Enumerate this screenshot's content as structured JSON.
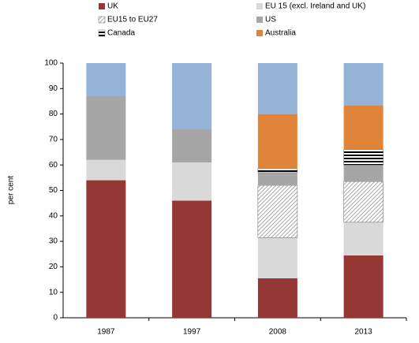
{
  "chart_data": {
    "type": "stacked-bar",
    "y_label": "per cent",
    "categories": [
      "1987",
      "1997",
      "2008",
      "2013"
    ],
    "ylim": [
      0,
      100
    ],
    "yticks": [
      0,
      10,
      20,
      30,
      40,
      50,
      60,
      70,
      80,
      90,
      100
    ],
    "grid": false,
    "series": [
      {
        "name": "UK",
        "color": "#953735",
        "values": [
          54,
          46,
          15.5,
          24.5
        ]
      },
      {
        "name": "EU 15 (excl. Ireland and UK)",
        "color": "#d9d9d9",
        "values": [
          8,
          15,
          16,
          13
        ]
      },
      {
        "name": "EU15 to EU27",
        "color": "#a0a0a0",
        "pattern": "diagonal",
        "values": [
          0,
          0,
          20.5,
          16
        ]
      },
      {
        "name": "US",
        "color": "#a6a6a6",
        "values": [
          25,
          13,
          5,
          6.5
        ]
      },
      {
        "name": "Canada",
        "color": "#000000",
        "pattern": "horizontal",
        "values": [
          0,
          0,
          1.5,
          6
        ]
      },
      {
        "name": "Australia",
        "color": "#e0843a",
        "values": [
          0,
          0,
          21.5,
          17.5
        ]
      },
      {
        "color": "#95b3d7",
        "values": [
          13,
          26,
          20,
          16.5
        ]
      }
    ]
  }
}
